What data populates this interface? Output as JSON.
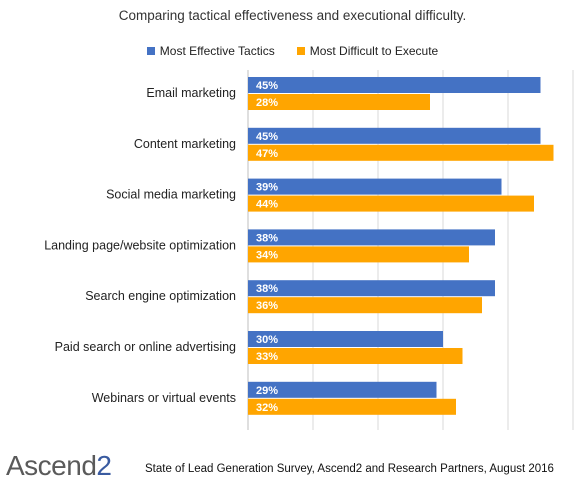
{
  "chart_data": {
    "type": "bar",
    "orientation": "horizontal",
    "title": "Comparing tactical effectiveness and executional difficulty.",
    "categories": [
      "Email marketing",
      "Content marketing",
      "Social media marketing",
      "Landing page/website optimization",
      "Search engine optimization",
      "Paid search or online advertising",
      "Webinars or virtual events"
    ],
    "series": [
      {
        "name": "Most Effective Tactics",
        "color": "#4472c4",
        "values": [
          45,
          45,
          39,
          38,
          38,
          30,
          29
        ],
        "labels": [
          "45%",
          "45%",
          "39%",
          "38%",
          "38%",
          "30%",
          "29%"
        ]
      },
      {
        "name": "Most Difficult to Execute",
        "color": "#ffa500",
        "values": [
          28,
          47,
          44,
          34,
          36,
          33,
          32
        ],
        "labels": [
          "28%",
          "47%",
          "44%",
          "34%",
          "36%",
          "33%",
          "32%"
        ]
      }
    ],
    "xlim": [
      0,
      50
    ],
    "grid": true,
    "legend_position": "top"
  },
  "logo": {
    "text_main": "Ascend",
    "text_accent": "2"
  },
  "source_note": "State of Lead Generation Survey, Ascend2 and Research Partners, August 2016"
}
